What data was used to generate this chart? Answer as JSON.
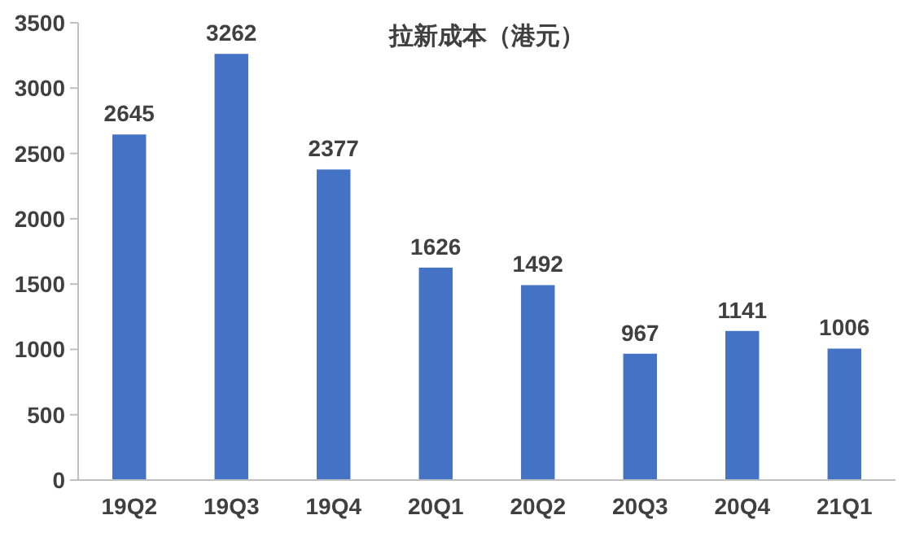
{
  "chart_data": {
    "type": "bar",
    "title": "拉新成本（港元）",
    "categories": [
      "19Q2",
      "19Q3",
      "19Q4",
      "20Q1",
      "20Q2",
      "20Q3",
      "20Q4",
      "21Q1"
    ],
    "values": [
      2645,
      3262,
      2377,
      1626,
      1492,
      967,
      1141,
      1006
    ],
    "color": "#4472c4",
    "ylim": [
      0,
      3500
    ],
    "yticks": [
      0,
      500,
      1000,
      1500,
      2000,
      2500,
      3000,
      3500
    ],
    "data_labels": true
  }
}
